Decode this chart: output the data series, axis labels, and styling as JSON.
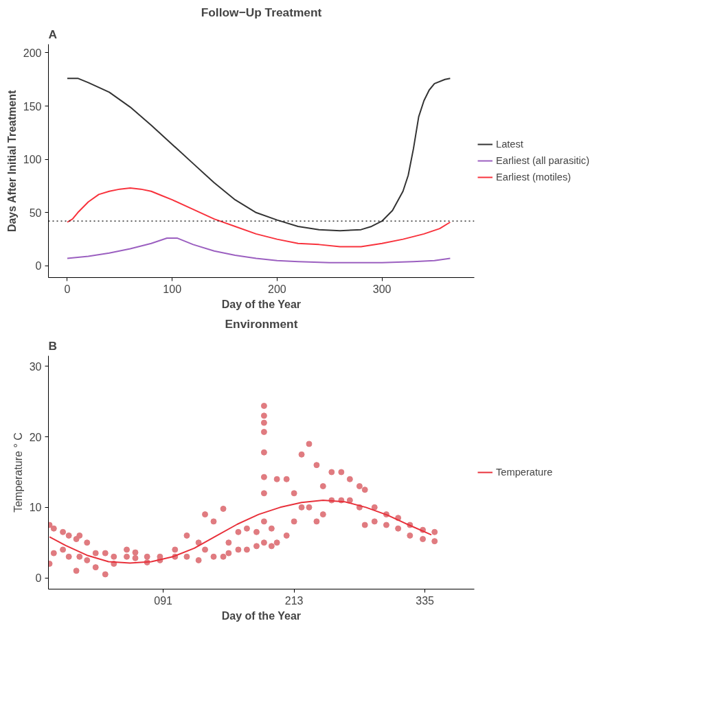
{
  "chart_data": [
    {
      "type": "line",
      "title": "Follow−Up Treatment",
      "xlabel": "Day of the Year",
      "ylabel": "Days After Initial Treatment",
      "annotations": [
        "A"
      ],
      "xlim": [
        -18,
        388
      ],
      "ylim": [
        -11,
        208
      ],
      "xticks": [
        0,
        100,
        200,
        300
      ],
      "yticks": [
        0,
        50,
        100,
        150,
        200
      ],
      "grid": false,
      "legend": "right",
      "line_style": "solid",
      "ref_lines": [
        {
          "axis": "y",
          "value": 42,
          "label": null,
          "color": "#000000",
          "line_style": "dotted"
        }
      ],
      "series": [
        {
          "name": "Latest",
          "color": "#333333",
          "x": [
            0,
            10,
            20,
            40,
            60,
            80,
            100,
            120,
            140,
            160,
            180,
            200,
            220,
            240,
            260,
            280,
            290,
            300,
            310,
            320,
            325,
            330,
            335,
            340,
            345,
            350,
            360,
            365
          ],
          "values": [
            176,
            176,
            172,
            163,
            149,
            132,
            114,
            96,
            78,
            62,
            50,
            43,
            37,
            34,
            33,
            34,
            37,
            42,
            52,
            70,
            85,
            110,
            140,
            155,
            165,
            171,
            175,
            176
          ]
        },
        {
          "name": "Earliest (all parasitic)",
          "color": "#9b5fc0",
          "x": [
            0,
            20,
            40,
            60,
            80,
            95,
            105,
            120,
            140,
            160,
            180,
            200,
            220,
            250,
            300,
            330,
            350,
            365
          ],
          "values": [
            7,
            9,
            12,
            16,
            21,
            26,
            26,
            20,
            14,
            10,
            7,
            5,
            4,
            3,
            3,
            4,
            5,
            7
          ]
        },
        {
          "name": "Earliest (motiles)",
          "color": "#f8323c",
          "x": [
            0,
            5,
            10,
            20,
            30,
            40,
            50,
            60,
            70,
            80,
            90,
            100,
            120,
            140,
            160,
            180,
            200,
            220,
            240,
            260,
            280,
            300,
            320,
            340,
            355,
            365
          ],
          "values": [
            41,
            44,
            50,
            60,
            67,
            70,
            72,
            73,
            72,
            70,
            66,
            62,
            53,
            44,
            37,
            30,
            25,
            21,
            20,
            18,
            18,
            21,
            25,
            30,
            35,
            41
          ]
        }
      ]
    },
    {
      "type": "scatter",
      "title": "Environment",
      "xlabel": "Day of the Year",
      "ylabel": "Temperature ° C",
      "annotations": [
        "B"
      ],
      "xlim": [
        -16,
        381
      ],
      "ylim": [
        -1.6,
        31.5
      ],
      "xticks": [
        {
          "value": 91,
          "label": "091"
        },
        {
          "value": 213,
          "label": "213"
        },
        {
          "value": 335,
          "label": "335"
        }
      ],
      "yticks": [
        0,
        10,
        20,
        30
      ],
      "grid": false,
      "legend": "right",
      "marker": "circle",
      "series": [
        {
          "color": "#e07b80",
          "x": [
            -15,
            -15,
            -11,
            -11,
            -2.5,
            -2.5,
            3,
            3,
            10,
            10,
            13,
            13,
            20,
            20,
            28,
            28,
            37,
            37,
            45,
            45,
            57,
            57,
            65,
            65,
            76,
            76,
            88,
            88,
            102,
            102,
            113,
            113,
            124,
            124,
            130,
            130,
            138,
            138,
            147,
            147,
            152,
            152,
            161,
            161,
            169,
            169,
            178,
            178,
            185,
            185,
            185,
            185,
            185,
            185,
            185,
            185,
            185,
            192,
            192,
            197,
            197,
            206,
            206,
            213,
            213,
            220,
            220,
            227,
            227,
            234,
            234,
            240,
            240,
            248,
            248,
            257,
            257,
            265,
            265,
            274,
            274,
            279,
            279,
            288,
            288,
            299,
            299,
            310,
            310,
            321,
            321,
            333,
            333,
            344,
            344
          ],
          "values": [
            2,
            7.5,
            3.5,
            7,
            4,
            6.5,
            3,
            6,
            1,
            5.5,
            3,
            6,
            2.5,
            5,
            1.5,
            3.5,
            0.5,
            3.5,
            2,
            3,
            3,
            4,
            2.8,
            3.6,
            2.2,
            3,
            2.5,
            3,
            3,
            4,
            3,
            6,
            2.5,
            5,
            4,
            9,
            3,
            8,
            3,
            9.8,
            3.5,
            5,
            4,
            6.5,
            4,
            7,
            4.5,
            6.5,
            5,
            8,
            12,
            14.3,
            17.8,
            20.7,
            22,
            23,
            24.4,
            4.5,
            7,
            5,
            14,
            6,
            14,
            8,
            12,
            10,
            17.5,
            10,
            19,
            8,
            16,
            9,
            13,
            11,
            15,
            11,
            15,
            11,
            14,
            10,
            13,
            7.5,
            12.5,
            8,
            10,
            7.5,
            9,
            7,
            8.5,
            6,
            7.5,
            5.5,
            6.8,
            5.2,
            6.5
          ]
        },
        {
          "type": "line",
          "name": "Temperature",
          "color": "#e8303a",
          "marker": "none",
          "x": [
            -15,
            0,
            20,
            40,
            60,
            80,
            100,
            120,
            140,
            160,
            180,
            200,
            220,
            240,
            260,
            280,
            300,
            320,
            341
          ],
          "values": [
            5.8,
            4.6,
            3.2,
            2.3,
            2.1,
            2.3,
            3.0,
            4.2,
            5.9,
            7.6,
            9.0,
            10.0,
            10.7,
            11.0,
            10.8,
            10.0,
            8.9,
            7.5,
            6.1
          ]
        }
      ]
    }
  ]
}
